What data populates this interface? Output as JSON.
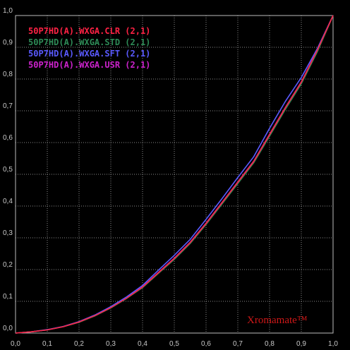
{
  "chart_data": {
    "type": "line",
    "xlim": [
      0.0,
      1.0
    ],
    "ylim": [
      0.0,
      1.0
    ],
    "grid": true,
    "legend_position": "top-left",
    "x_ticks": [
      "0,0",
      "0,1",
      "0,2",
      "0,3",
      "0,4",
      "0,5",
      "0,6",
      "0,7",
      "0,8",
      "0,9",
      "1,0"
    ],
    "y_ticks": [
      "0,0",
      "0,1",
      "0,2",
      "0,3",
      "0,4",
      "0,5",
      "0,6",
      "0,7",
      "0,8",
      "0,9",
      "1,0"
    ],
    "x": [
      0.0,
      0.05,
      0.1,
      0.15,
      0.2,
      0.25,
      0.3,
      0.35,
      0.4,
      0.45,
      0.5,
      0.55,
      0.6,
      0.65,
      0.7,
      0.75,
      0.8,
      0.85,
      0.9,
      0.95,
      1.0
    ],
    "series": [
      {
        "name": "50P7HD(A).WXGA.CLR (2,1)",
        "color": "#ff2244",
        "values": [
          0.0,
          0.004,
          0.01,
          0.02,
          0.035,
          0.055,
          0.08,
          0.11,
          0.145,
          0.19,
          0.235,
          0.285,
          0.345,
          0.41,
          0.475,
          0.54,
          0.625,
          0.71,
          0.79,
          0.89,
          1.0
        ]
      },
      {
        "name": "50P7HD(A).WXGA.STD (2,1)",
        "color": "#2e8b57",
        "values": [
          0.0,
          0.004,
          0.01,
          0.02,
          0.034,
          0.054,
          0.079,
          0.109,
          0.143,
          0.188,
          0.232,
          0.282,
          0.342,
          0.406,
          0.471,
          0.536,
          0.62,
          0.705,
          0.785,
          0.885,
          1.0
        ]
      },
      {
        "name": "50P7HD(A).WXGA.SFT (2,1)",
        "color": "#5a5aff",
        "values": [
          0.0,
          0.004,
          0.011,
          0.021,
          0.036,
          0.057,
          0.083,
          0.114,
          0.15,
          0.198,
          0.245,
          0.295,
          0.358,
          0.423,
          0.49,
          0.555,
          0.645,
          0.73,
          0.805,
          0.895,
          1.0
        ]
      },
      {
        "name": "50P7HD(A).WXGA.USR (2,1)",
        "color": "#cc22cc",
        "values": [
          0.0,
          0.004,
          0.01,
          0.02,
          0.035,
          0.055,
          0.08,
          0.11,
          0.146,
          0.191,
          0.236,
          0.286,
          0.346,
          0.411,
          0.476,
          0.541,
          0.626,
          0.711,
          0.791,
          0.891,
          1.0
        ]
      }
    ]
  },
  "brand": {
    "text": "Xromamate™"
  }
}
